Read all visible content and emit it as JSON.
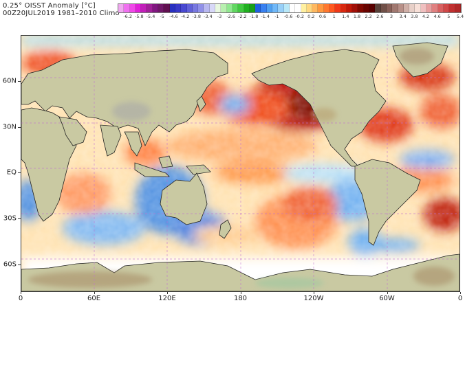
{
  "header": {
    "title_line1": "0.25° OISST Anomaly [°C]",
    "title_line2": "00Z20JUL2019 1981–2010 Climo"
  },
  "colorbar": {
    "unit": "°C",
    "swatches": [
      "#f0a8f0",
      "#f070f0",
      "#f048e8",
      "#e020d8",
      "#c020b8",
      "#a02098",
      "#801880",
      "#701868",
      "#601050",
      "#2830c0",
      "#3838c8",
      "#4848d0",
      "#6060d8",
      "#7878e0",
      "#9090e8",
      "#b8b8f0",
      "#d8d8f8",
      "#e8f8e0",
      "#b8f0b0",
      "#90e890",
      "#60d860",
      "#40c840",
      "#20b020",
      "#18a018",
      "#2060e0",
      "#3880f0",
      "#50a0f0",
      "#70b8f8",
      "#98d0f8",
      "#b8e8f8",
      "#ffffff",
      "#ffffff",
      "#fff0a0",
      "#ffd880",
      "#ffb860",
      "#ff9840",
      "#ff7830",
      "#ff5820",
      "#f03818",
      "#d82810",
      "#c01808",
      "#a01008",
      "#800800",
      "#680400",
      "#580000",
      "#584038",
      "#705048",
      "#886058",
      "#a07870",
      "#b89088",
      "#d0b0a8",
      "#e8d0c8",
      "#f8e0d8",
      "#f0c0c0",
      "#e8a0a0",
      "#e08080",
      "#d86060",
      "#d04848",
      "#c03030",
      "#b02828"
    ],
    "tick_labels": [
      "-6.2",
      "-5.8",
      "-5.4",
      "-5",
      "-4.6",
      "-4.2",
      "-3.8",
      "-3.4",
      "-3",
      "-2.6",
      "-2.2",
      "-1.8",
      "-1.4",
      "-1",
      "-0.6",
      "-0.2",
      "0.2",
      "0.6",
      "1",
      "1.4",
      "1.8",
      "2.2",
      "2.6",
      "3",
      "3.4",
      "3.8",
      "4.2",
      "4.6",
      "5",
      "5.4",
      "5.8",
      "6.2"
    ],
    "range": [
      -6.4,
      6.4
    ]
  },
  "map": {
    "projection": "cylindrical equidistant, centered 180",
    "land_color": "#c8c8a0",
    "y_axis_labels": [
      {
        "label": "60N",
        "lat": 60
      },
      {
        "label": "30N",
        "lat": 30
      },
      {
        "label": "EQ",
        "lat": 0
      },
      {
        "label": "30S",
        "lat": -30
      },
      {
        "label": "60S",
        "lat": -60
      }
    ],
    "x_axis_labels": [
      {
        "label": "0",
        "lon": 0
      },
      {
        "label": "60E",
        "lon": 60
      },
      {
        "label": "120E",
        "lon": 120
      },
      {
        "label": "180",
        "lon": 180
      },
      {
        "label": "120W",
        "lon": 240
      },
      {
        "label": "60W",
        "lon": 300
      },
      {
        "label": "0",
        "lon": 360
      }
    ],
    "lat_range": [
      -78,
      90
    ],
    "lon_range": [
      0,
      360
    ]
  }
}
